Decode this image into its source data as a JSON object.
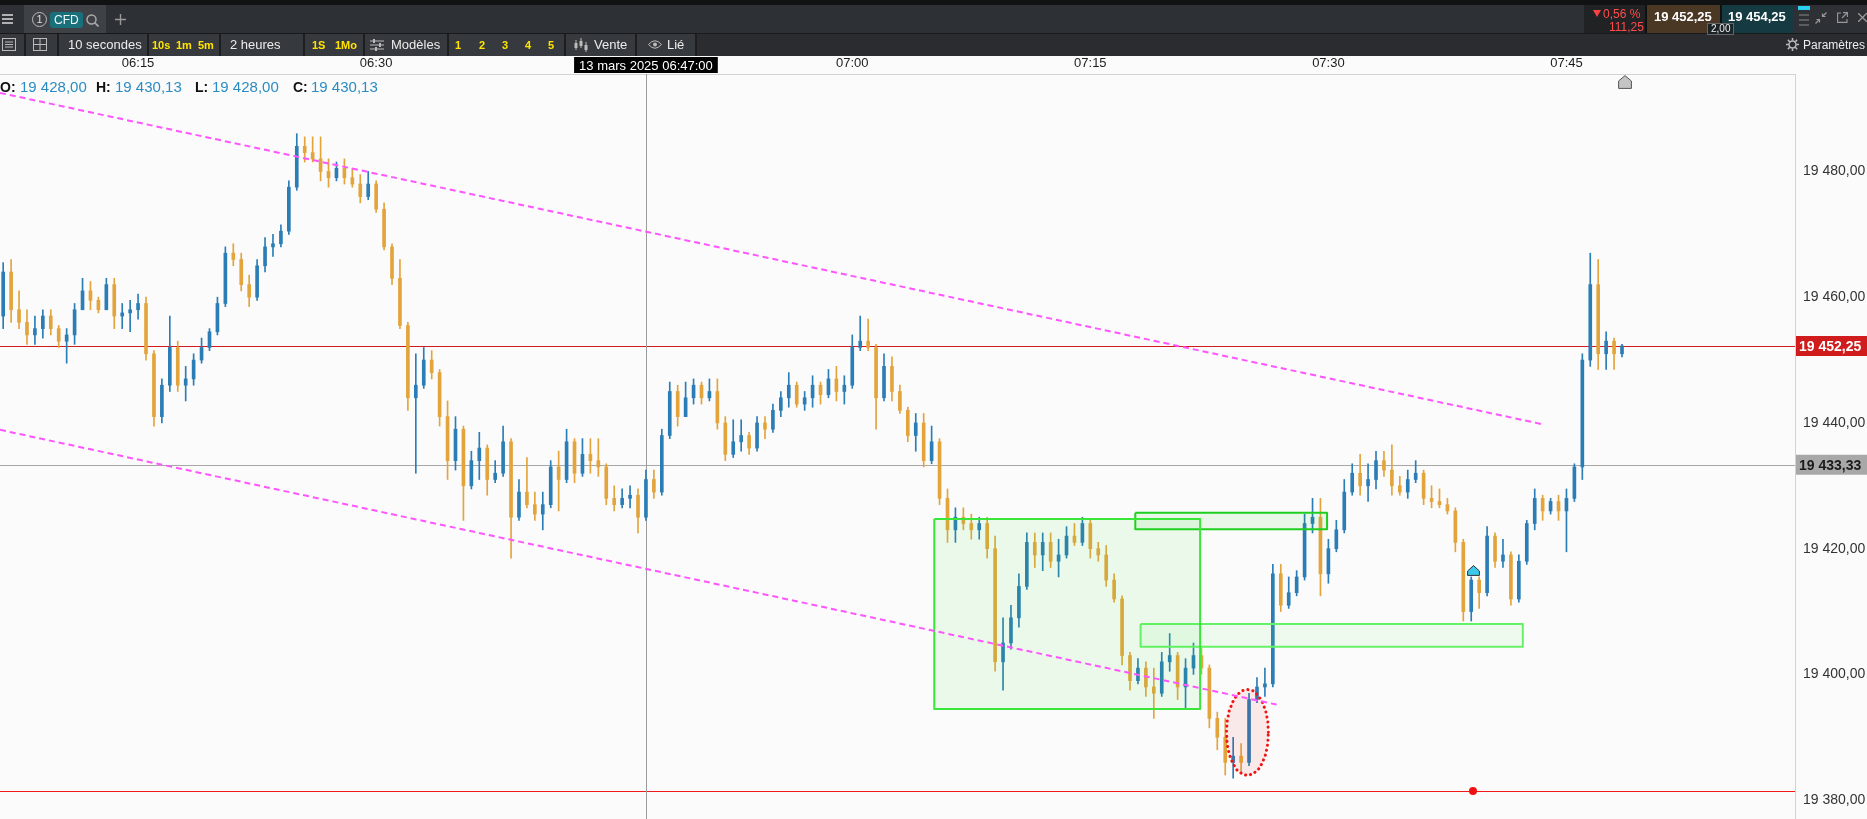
{
  "chart_data": {
    "type": "candlestick",
    "x": [
      "2025-03-13T06:06:30",
      "2025-03-13T06:07:00",
      "2025-03-13T06:07:30",
      "2025-03-13T06:08:00",
      "2025-03-13T06:08:30",
      "2025-03-13T06:09:00",
      "2025-03-13T06:09:30",
      "2025-03-13T06:10:00",
      "2025-03-13T06:10:30",
      "2025-03-13T06:11:00",
      "2025-03-13T06:11:30",
      "2025-03-13T06:12:00",
      "2025-03-13T06:12:30",
      "2025-03-13T06:13:00",
      "2025-03-13T06:13:30",
      "2025-03-13T06:14:00",
      "2025-03-13T06:14:30",
      "2025-03-13T06:15:00",
      "2025-03-13T06:15:30",
      "2025-03-13T06:16:00",
      "2025-03-13T06:16:30",
      "2025-03-13T06:17:00",
      "2025-03-13T06:17:30",
      "2025-03-13T06:18:00",
      "2025-03-13T06:18:30",
      "2025-03-13T06:19:00",
      "2025-03-13T06:19:30",
      "2025-03-13T06:20:00",
      "2025-03-13T06:20:30",
      "2025-03-13T06:21:00",
      "2025-03-13T06:21:30",
      "2025-03-13T06:22:00",
      "2025-03-13T06:22:30",
      "2025-03-13T06:23:00",
      "2025-03-13T06:23:30",
      "2025-03-13T06:24:00",
      "2025-03-13T06:24:30",
      "2025-03-13T06:25:00",
      "2025-03-13T06:25:30",
      "2025-03-13T06:26:00",
      "2025-03-13T06:26:30",
      "2025-03-13T06:27:00",
      "2025-03-13T06:27:30",
      "2025-03-13T06:28:00",
      "2025-03-13T06:28:30",
      "2025-03-13T06:29:00",
      "2025-03-13T06:29:30",
      "2025-03-13T06:30:00",
      "2025-03-13T06:30:30",
      "2025-03-13T06:31:00",
      "2025-03-13T06:31:30",
      "2025-03-13T06:32:00",
      "2025-03-13T06:32:30",
      "2025-03-13T06:33:00",
      "2025-03-13T06:33:30",
      "2025-03-13T06:34:00",
      "2025-03-13T06:34:30",
      "2025-03-13T06:35:00",
      "2025-03-13T06:35:30",
      "2025-03-13T06:36:00",
      "2025-03-13T06:36:30",
      "2025-03-13T06:37:00",
      "2025-03-13T06:37:30",
      "2025-03-13T06:38:00",
      "2025-03-13T06:38:30",
      "2025-03-13T06:39:00",
      "2025-03-13T06:39:30",
      "2025-03-13T06:40:00",
      "2025-03-13T06:40:30",
      "2025-03-13T06:41:00",
      "2025-03-13T06:41:30",
      "2025-03-13T06:42:00",
      "2025-03-13T06:42:30",
      "2025-03-13T06:43:00",
      "2025-03-13T06:43:30",
      "2025-03-13T06:44:00",
      "2025-03-13T06:44:30",
      "2025-03-13T06:45:00",
      "2025-03-13T06:45:30",
      "2025-03-13T06:46:00",
      "2025-03-13T06:46:30",
      "2025-03-13T06:47:00",
      "2025-03-13T06:47:30",
      "2025-03-13T06:48:00",
      "2025-03-13T06:48:30",
      "2025-03-13T06:49:00",
      "2025-03-13T06:49:30",
      "2025-03-13T06:50:00",
      "2025-03-13T06:50:30",
      "2025-03-13T06:51:00",
      "2025-03-13T06:51:30",
      "2025-03-13T06:52:00",
      "2025-03-13T06:52:30",
      "2025-03-13T06:53:00",
      "2025-03-13T06:53:30",
      "2025-03-13T06:54:00",
      "2025-03-13T06:54:30",
      "2025-03-13T06:55:00",
      "2025-03-13T06:55:30",
      "2025-03-13T06:56:00",
      "2025-03-13T06:56:30",
      "2025-03-13T06:57:00",
      "2025-03-13T06:57:30",
      "2025-03-13T06:58:00",
      "2025-03-13T06:58:30",
      "2025-03-13T06:59:00",
      "2025-03-13T06:59:30",
      "2025-03-13T07:00:00",
      "2025-03-13T07:00:30",
      "2025-03-13T07:01:00",
      "2025-03-13T07:01:30",
      "2025-03-13T07:02:00",
      "2025-03-13T07:02:30",
      "2025-03-13T07:03:00",
      "2025-03-13T07:03:30",
      "2025-03-13T07:04:00",
      "2025-03-13T07:04:30",
      "2025-03-13T07:05:00",
      "2025-03-13T07:05:30",
      "2025-03-13T07:06:00",
      "2025-03-13T07:06:30",
      "2025-03-13T07:07:00",
      "2025-03-13T07:07:30",
      "2025-03-13T07:08:00",
      "2025-03-13T07:08:30",
      "2025-03-13T07:09:00",
      "2025-03-13T07:09:30",
      "2025-03-13T07:10:00",
      "2025-03-13T07:10:30",
      "2025-03-13T07:11:00",
      "2025-03-13T07:11:30",
      "2025-03-13T07:12:00",
      "2025-03-13T07:12:30",
      "2025-03-13T07:13:00",
      "2025-03-13T07:13:30",
      "2025-03-13T07:14:00",
      "2025-03-13T07:14:30",
      "2025-03-13T07:15:00",
      "2025-03-13T07:15:30",
      "2025-03-13T07:16:00",
      "2025-03-13T07:16:30",
      "2025-03-13T07:17:00",
      "2025-03-13T07:17:30",
      "2025-03-13T07:18:00",
      "2025-03-13T07:18:30",
      "2025-03-13T07:19:00",
      "2025-03-13T07:19:30",
      "2025-03-13T07:20:00",
      "2025-03-13T07:20:30",
      "2025-03-13T07:21:00",
      "2025-03-13T07:21:30",
      "2025-03-13T07:22:00",
      "2025-03-13T07:22:30",
      "2025-03-13T07:23:00",
      "2025-03-13T07:23:30",
      "2025-03-13T07:24:00",
      "2025-03-13T07:24:30",
      "2025-03-13T07:25:00",
      "2025-03-13T07:25:30",
      "2025-03-13T07:26:00",
      "2025-03-13T07:26:30",
      "2025-03-13T07:27:00",
      "2025-03-13T07:27:30",
      "2025-03-13T07:28:00",
      "2025-03-13T07:28:30",
      "2025-03-13T07:29:00",
      "2025-03-13T07:29:30",
      "2025-03-13T07:30:00",
      "2025-03-13T07:30:30",
      "2025-03-13T07:31:00",
      "2025-03-13T07:31:30",
      "2025-03-13T07:32:00",
      "2025-03-13T07:32:30",
      "2025-03-13T07:33:00",
      "2025-03-13T07:33:30",
      "2025-03-13T07:34:00",
      "2025-03-13T07:34:30",
      "2025-03-13T07:35:00",
      "2025-03-13T07:35:30",
      "2025-03-13T07:36:00",
      "2025-03-13T07:36:30",
      "2025-03-13T07:37:00",
      "2025-03-13T07:37:30",
      "2025-03-13T07:38:00",
      "2025-03-13T07:38:30",
      "2025-03-13T07:39:00",
      "2025-03-13T07:39:30",
      "2025-03-13T07:40:00",
      "2025-03-13T07:40:30",
      "2025-03-13T07:41:00",
      "2025-03-13T07:41:30",
      "2025-03-13T07:42:00",
      "2025-03-13T07:42:30",
      "2025-03-13T07:43:00",
      "2025-03-13T07:43:30",
      "2025-03-13T07:44:00",
      "2025-03-13T07:44:30",
      "2025-03-13T07:45:00",
      "2025-03-13T07:45:30",
      "2025-03-13T07:46:00",
      "2025-03-13T07:46:30",
      "2025-03-13T07:47:00",
      "2025-03-13T07:47:30",
      "2025-03-13T07:48:00",
      "2025-03-13T07:48:30"
    ],
    "ohlc": [
      [
        19457,
        19465.5,
        19455,
        19464
      ],
      [
        19464,
        19466,
        19456,
        19458
      ],
      [
        19458,
        19461,
        19455,
        19456
      ],
      [
        19456,
        19458,
        19452.5,
        19454
      ],
      [
        19454,
        19457,
        19452.5,
        19455
      ],
      [
        19455,
        19458,
        19453.5,
        19457
      ],
      [
        19457,
        19458,
        19454,
        19455
      ],
      [
        19455,
        19455.5,
        19452,
        19453
      ],
      [
        19453,
        19455,
        19449.5,
        19454
      ],
      [
        19454,
        19459,
        19452.5,
        19458
      ],
      [
        19458,
        19463,
        19458,
        19461
      ],
      [
        19461,
        19462.5,
        19458,
        19459.5
      ],
      [
        19459.5,
        19460,
        19457.5,
        19458
      ],
      [
        19458,
        19463,
        19458,
        19462
      ],
      [
        19462,
        19463,
        19455,
        19457
      ],
      [
        19457,
        19459,
        19455,
        19457.5
      ],
      [
        19457.5,
        19459.5,
        19454.5,
        19458
      ],
      [
        19458,
        19460.5,
        19456.5,
        19459
      ],
      [
        19459,
        19460,
        19450,
        19451
      ],
      [
        19451,
        19451.5,
        19439.5,
        19441
      ],
      [
        19441,
        19447,
        19440,
        19446
      ],
      [
        19446,
        19457,
        19445,
        19452
      ],
      [
        19452,
        19453,
        19445,
        19446
      ],
      [
        19446,
        19449,
        19443.5,
        19447
      ],
      [
        19447,
        19451,
        19446,
        19450
      ],
      [
        19450,
        19453.5,
        19449.5,
        19452
      ],
      [
        19452,
        19455,
        19451.5,
        19454.5
      ],
      [
        19454.5,
        19460,
        19454,
        19459
      ],
      [
        19459,
        19468,
        19458.5,
        19467
      ],
      [
        19467,
        19468.5,
        19465,
        19466
      ],
      [
        19466,
        19467,
        19461,
        19462
      ],
      [
        19462,
        19463.5,
        19458.5,
        19460
      ],
      [
        19460,
        19466,
        19459.5,
        19465
      ],
      [
        19465,
        19469.5,
        19464,
        19468
      ],
      [
        19468,
        19470,
        19466.5,
        19468.5
      ],
      [
        19468.5,
        19471.5,
        19468,
        19470.5
      ],
      [
        19470.5,
        19478.5,
        19470,
        19477.5
      ],
      [
        19477.5,
        19486,
        19477,
        19484
      ],
      [
        19484,
        19485.5,
        19481.5,
        19483
      ],
      [
        19483,
        19485.5,
        19481.5,
        19482
      ],
      [
        19482,
        19485.5,
        19478.5,
        19480
      ],
      [
        19480,
        19482,
        19477.5,
        19479
      ],
      [
        19479,
        19481.5,
        19478.5,
        19480.5
      ],
      [
        19480.5,
        19482,
        19478,
        19479
      ],
      [
        19479,
        19480.5,
        19477.5,
        19478
      ],
      [
        19478,
        19479.5,
        19475,
        19476
      ],
      [
        19476,
        19480,
        19475.5,
        19478
      ],
      [
        19478,
        19478.5,
        19473.5,
        19474
      ],
      [
        19474,
        19475,
        19467.5,
        19468
      ],
      [
        19468,
        19468.5,
        19462,
        19463
      ],
      [
        19463,
        19466,
        19455,
        19455.5
      ],
      [
        19455.5,
        19456,
        19442,
        19444
      ],
      [
        19444,
        19451,
        19432,
        19446
      ],
      [
        19446,
        19452,
        19445.5,
        19450
      ],
      [
        19450,
        19451.5,
        19447,
        19448
      ],
      [
        19448,
        19448.5,
        19439.5,
        19441
      ],
      [
        19441,
        19443.5,
        19431,
        19434
      ],
      [
        19434,
        19441,
        19432.5,
        19439
      ],
      [
        19439,
        19439.5,
        19424.5,
        19430
      ],
      [
        19430,
        19435.5,
        19429.5,
        19434
      ],
      [
        19434,
        19438.5,
        19431,
        19436
      ],
      [
        19436,
        19436.5,
        19428.5,
        19431
      ],
      [
        19431,
        19434,
        19430.5,
        19432
      ],
      [
        19432,
        19439.5,
        19431.5,
        19437
      ],
      [
        19437,
        19437.5,
        19418.5,
        19425
      ],
      [
        19425,
        19431,
        19424.5,
        19429
      ],
      [
        19429,
        19434.5,
        19426.5,
        19427
      ],
      [
        19427,
        19429,
        19424.5,
        19425.5
      ],
      [
        19425.5,
        19429,
        19423,
        19427
      ],
      [
        19427,
        19434,
        19426.5,
        19433
      ],
      [
        19433,
        19435.5,
        19426,
        19431
      ],
      [
        19431,
        19439,
        19430.5,
        19437
      ],
      [
        19437,
        19437.5,
        19430.5,
        19432
      ],
      [
        19432,
        19437.5,
        19431.5,
        19435
      ],
      [
        19435,
        19437.5,
        19432,
        19434
      ],
      [
        19434,
        19437.5,
        19431.5,
        19433
      ],
      [
        19433,
        19433.5,
        19427,
        19428
      ],
      [
        19428,
        19430,
        19426,
        19427
      ],
      [
        19427,
        19429.5,
        19426.5,
        19428
      ],
      [
        19428,
        19430,
        19426.5,
        19428.5
      ],
      [
        19428.5,
        19429.5,
        19422.5,
        19425
      ],
      [
        19425,
        19432.5,
        19424.5,
        19431
      ],
      [
        19431,
        19432.5,
        19428,
        19429
      ],
      [
        19429,
        19439,
        19428.5,
        19438
      ],
      [
        19438,
        19446.5,
        19437.5,
        19445
      ],
      [
        19445,
        19446,
        19439.5,
        19441
      ],
      [
        19441,
        19446.5,
        19441,
        19444
      ],
      [
        19444,
        19447,
        19443,
        19446
      ],
      [
        19446,
        19446.5,
        19443,
        19444
      ],
      [
        19444,
        19447,
        19443.5,
        19445
      ],
      [
        19445,
        19447,
        19439,
        19440
      ],
      [
        19440,
        19441,
        19434,
        19435
      ],
      [
        19435,
        19440.5,
        19434.5,
        19437
      ],
      [
        19437,
        19440.5,
        19435.5,
        19438
      ],
      [
        19438,
        19438.5,
        19435,
        19436
      ],
      [
        19436,
        19441,
        19435.5,
        19440
      ],
      [
        19440,
        19441,
        19437.5,
        19439
      ],
      [
        19439,
        19443,
        19438.5,
        19442
      ],
      [
        19442,
        19445,
        19441,
        19444
      ],
      [
        19444,
        19448,
        19442.5,
        19446
      ],
      [
        19446,
        19446.5,
        19442.5,
        19443
      ],
      [
        19443,
        19445,
        19442,
        19444
      ],
      [
        19444,
        19447.5,
        19442.5,
        19446
      ],
      [
        19446,
        19446.5,
        19443,
        19444.5
      ],
      [
        19444.5,
        19448.5,
        19444,
        19447
      ],
      [
        19447,
        19449,
        19443.5,
        19445
      ],
      [
        19445,
        19447.5,
        19443,
        19446
      ],
      [
        19446,
        19454,
        19445.5,
        19452
      ],
      [
        19452,
        19457,
        19451.5,
        19453
      ],
      [
        19453,
        19456.5,
        19451.5,
        19452
      ],
      [
        19452,
        19452.5,
        19439,
        19444
      ],
      [
        19444,
        19451,
        19443.5,
        19449
      ],
      [
        19449,
        19450.5,
        19443.5,
        19445
      ],
      [
        19445,
        19446,
        19441.5,
        19442
      ],
      [
        19442,
        19442.5,
        19437,
        19438
      ],
      [
        19438,
        19441.5,
        19435.5,
        19440
      ],
      [
        19440,
        19441.5,
        19433,
        19434
      ],
      [
        19434,
        19439.5,
        19433.5,
        19437
      ],
      [
        19437,
        19437.5,
        19427,
        19428
      ],
      [
        19428,
        19429.5,
        19421,
        19423
      ],
      [
        19423,
        19426.5,
        19421,
        19425
      ],
      [
        19425,
        19426.5,
        19423,
        19424
      ],
      [
        19424,
        19425.5,
        19421.5,
        19423
      ],
      [
        19423,
        19425,
        19421.5,
        19424
      ],
      [
        19424,
        19425,
        19418.5,
        19420
      ],
      [
        19420,
        19422,
        19400.5,
        19402
      ],
      [
        19402,
        19409,
        19397.5,
        19405
      ],
      [
        19405,
        19411,
        19404,
        19409
      ],
      [
        19409,
        19416,
        19407.5,
        19414
      ],
      [
        19414,
        19422.5,
        19413.5,
        19421
      ],
      [
        19421,
        19422.5,
        19417,
        19419
      ],
      [
        19419,
        19422.5,
        19416.5,
        19421
      ],
      [
        19421,
        19422.5,
        19417,
        19418
      ],
      [
        19418,
        19421.5,
        19415.5,
        19419
      ],
      [
        19419,
        19423.5,
        19418.5,
        19422
      ],
      [
        19422,
        19424,
        19420.5,
        19421
      ],
      [
        19421,
        19425,
        19420.5,
        19424
      ],
      [
        19424,
        19424.5,
        19418.5,
        19420
      ],
      [
        19420,
        19421,
        19418,
        19419
      ],
      [
        19419,
        19420.5,
        19414,
        19415
      ],
      [
        19415,
        19416,
        19411.5,
        19412
      ],
      [
        19412,
        19412.5,
        19401.5,
        19403
      ],
      [
        19403,
        19403.5,
        19397.5,
        19399
      ],
      [
        19399,
        19402.5,
        19398.5,
        19401
      ],
      [
        19401,
        19402,
        19396.5,
        19398
      ],
      [
        19398,
        19401,
        19393,
        19397
      ],
      [
        19397,
        19403.5,
        19396.5,
        19402
      ],
      [
        19402,
        19406.5,
        19400.5,
        19403
      ],
      [
        19403,
        19403.5,
        19396,
        19398
      ],
      [
        19398,
        19402.5,
        19394.5,
        19401
      ],
      [
        19401,
        19405,
        19400,
        19403
      ],
      [
        19403,
        19404.5,
        19400,
        19401
      ],
      [
        19401,
        19401.5,
        19391.5,
        19393
      ],
      [
        19393,
        19394,
        19388,
        19390
      ],
      [
        19390,
        19393,
        19384,
        19386
      ],
      [
        19386,
        19390,
        19383.5,
        19387
      ],
      [
        19387,
        19389,
        19384.5,
        19386
      ],
      [
        19386,
        19397,
        19385.5,
        19396
      ],
      [
        19396,
        19399.5,
        19395.5,
        19398
      ],
      [
        19398,
        19401,
        19396.5,
        19398.5
      ],
      [
        19398.5,
        19417.5,
        19398,
        19416
      ],
      [
        19416,
        19417.5,
        19410,
        19411
      ],
      [
        19411,
        19415.5,
        19410.5,
        19413
      ],
      [
        19413,
        19416.5,
        19412.5,
        19415.5
      ],
      [
        19415.5,
        19425.5,
        19415,
        19424
      ],
      [
        19424,
        19428,
        19422.5,
        19425
      ],
      [
        19425,
        19428,
        19412.5,
        19416
      ],
      [
        19416,
        19421.5,
        19414.5,
        19420
      ],
      [
        19420,
        19424.5,
        19419.5,
        19423
      ],
      [
        19423,
        19431,
        19422.5,
        19429
      ],
      [
        19429,
        19433.5,
        19428.5,
        19432
      ],
      [
        19432,
        19435,
        19428.5,
        19430
      ],
      [
        19430,
        19433.5,
        19427.5,
        19431
      ],
      [
        19431,
        19435.5,
        19429.5,
        19434
      ],
      [
        19434,
        19435.5,
        19431.5,
        19432.5
      ],
      [
        19432.5,
        19436.5,
        19428.5,
        19430
      ],
      [
        19430,
        19431.5,
        19428.5,
        19429
      ],
      [
        19429,
        19432.5,
        19428,
        19431
      ],
      [
        19431,
        19434,
        19430.5,
        19432
      ],
      [
        19432,
        19432.5,
        19427,
        19428
      ],
      [
        19428,
        19430,
        19426.5,
        19427.5
      ],
      [
        19427.5,
        19429.5,
        19426.5,
        19427
      ],
      [
        19427,
        19428,
        19425.5,
        19426
      ],
      [
        19426,
        19426.5,
        19419.5,
        19421
      ],
      [
        19421,
        19421.5,
        19408.5,
        19410
      ],
      [
        19410,
        19415.5,
        19408.5,
        19415
      ],
      [
        19415,
        19415.5,
        19410.5,
        19413
      ],
      [
        19413,
        19423.5,
        19412.5,
        19422
      ],
      [
        19422,
        19422.5,
        19417,
        19418
      ],
      [
        19418,
        19421.5,
        19417,
        19419
      ],
      [
        19419,
        19419.5,
        19411,
        19412
      ],
      [
        19412,
        19419,
        19411.5,
        19418
      ],
      [
        19418,
        19424.5,
        19417.5,
        19424
      ],
      [
        19424,
        19429.5,
        19423,
        19428
      ],
      [
        19428,
        19428.5,
        19424.5,
        19426
      ],
      [
        19426,
        19428,
        19425.5,
        19427.5
      ],
      [
        19427.5,
        19428.5,
        19424.5,
        19426
      ],
      [
        19426,
        19429.5,
        19419.5,
        19428
      ],
      [
        19428,
        19433.5,
        19427.5,
        19433
      ],
      [
        19433,
        19451,
        19431,
        19450
      ],
      [
        19450,
        19467,
        19449,
        19462
      ],
      [
        19462,
        19466,
        19448.5,
        19451
      ],
      [
        19451,
        19454.5,
        19448.5,
        19453
      ],
      [
        19453,
        19453.5,
        19448.5,
        19451
      ],
      [
        19451,
        19452.5,
        19450.5,
        19452.25
      ]
    ],
    "colors": [
      "#2b7db6",
      "#e3a43c",
      "#e3a43c",
      "#e3a43c",
      "#2b7db6",
      "#2b7db6",
      "#e3a43c",
      "#e3a43c",
      "#2b7db6",
      "#2b7db6",
      "#2b7db6",
      "#e3a43c",
      "#e3a43c",
      "#2b7db6",
      "#e3a43c",
      "#2b7db6",
      "#2b7db6",
      "#2b7db6",
      "#e3a43c",
      "#e3a43c",
      "#2b7db6",
      "#2b7db6",
      "#e3a43c",
      "#2b7db6",
      "#2b7db6",
      "#2b7db6",
      "#2b7db6",
      "#2b7db6",
      "#2b7db6",
      "#e3a43c",
      "#e3a43c",
      "#e3a43c",
      "#2b7db6",
      "#2b7db6",
      "#2b7db6",
      "#2b7db6",
      "#2b7db6",
      "#2b7db6",
      "#e3a43c",
      "#e3a43c",
      "#e3a43c",
      "#e3a43c",
      "#2b7db6",
      "#e3a43c",
      "#e3a43c",
      "#e3a43c",
      "#2b7db6",
      "#e3a43c",
      "#e3a43c",
      "#e3a43c",
      "#e3a43c",
      "#e3a43c",
      "#2b7db6",
      "#2b7db6",
      "#e3a43c",
      "#e3a43c",
      "#e3a43c",
      "#2b7db6",
      "#e3a43c",
      "#2b7db6",
      "#2b7db6",
      "#e3a43c",
      "#2b7db6",
      "#2b7db6",
      "#e3a43c",
      "#2b7db6",
      "#e3a43c",
      "#e3a43c",
      "#2b7db6",
      "#2b7db6",
      "#e3a43c",
      "#2b7db6",
      "#e3a43c",
      "#2b7db6",
      "#e3a43c",
      "#e3a43c",
      "#e3a43c",
      "#e3a43c",
      "#2b7db6",
      "#2b7db6",
      "#e3a43c",
      "#2b7db6",
      "#e3a43c",
      "#2b7db6",
      "#2b7db6",
      "#e3a43c",
      "#2b7db6",
      "#2b7db6",
      "#e3a43c",
      "#2b7db6",
      "#e3a43c",
      "#e3a43c",
      "#2b7db6",
      "#2b7db6",
      "#e3a43c",
      "#2b7db6",
      "#e3a43c",
      "#2b7db6",
      "#2b7db6",
      "#2b7db6",
      "#e3a43c",
      "#2b7db6",
      "#2b7db6",
      "#e3a43c",
      "#2b7db6",
      "#e3a43c",
      "#2b7db6",
      "#2b7db6",
      "#2b7db6",
      "#e3a43c",
      "#e3a43c",
      "#2b7db6",
      "#e3a43c",
      "#e3a43c",
      "#e3a43c",
      "#2b7db6",
      "#e3a43c",
      "#2b7db6",
      "#e3a43c",
      "#e3a43c",
      "#2b7db6",
      "#e3a43c",
      "#e3a43c",
      "#2b7db6",
      "#e3a43c",
      "#e3a43c",
      "#2b7db6",
      "#2b7db6",
      "#2b7db6",
      "#2b7db6",
      "#e3a43c",
      "#2b7db6",
      "#e3a43c",
      "#2b7db6",
      "#2b7db6",
      "#e3a43c",
      "#2b7db6",
      "#e3a43c",
      "#e3a43c",
      "#e3a43c",
      "#e3a43c",
      "#e3a43c",
      "#e3a43c",
      "#2b7db6",
      "#e3a43c",
      "#e3a43c",
      "#2b7db6",
      "#2b7db6",
      "#e3a43c",
      "#2b7db6",
      "#2b7db6",
      "#e3a43c",
      "#e3a43c",
      "#e3a43c",
      "#e3a43c",
      "#2b7db6",
      "#e3a43c",
      "#2b7db6",
      "#2b7db6",
      "#2b7db6",
      "#2b7db6",
      "#e3a43c",
      "#2b7db6",
      "#2b7db6",
      "#2b7db6",
      "#2b7db6",
      "#e3a43c",
      "#2b7db6",
      "#2b7db6",
      "#2b7db6",
      "#2b7db6",
      "#e3a43c",
      "#2b7db6",
      "#2b7db6",
      "#e3a43c",
      "#e3a43c",
      "#e3a43c",
      "#2b7db6",
      "#2b7db6",
      "#e3a43c",
      "#e3a43c",
      "#e3a43c",
      "#e3a43c",
      "#e3a43c",
      "#e3a43c",
      "#2b7db6",
      "#e3a43c",
      "#2b7db6",
      "#e3a43c",
      "#2b7db6",
      "#e3a43c",
      "#2b7db6",
      "#2b7db6",
      "#2b7db6",
      "#e3a43c",
      "#2b7db6",
      "#e3a43c",
      "#2b7db6",
      "#2b7db6",
      "#2b7db6",
      "#2b7db6",
      "#e3a43c",
      "#2b7db6",
      "#e3a43c",
      "#2b7db6"
    ],
    "series": [
      {
        "type": "line",
        "color": "#ff55ff",
        "line_style": "dashed",
        "x": [
          "2025-03-13T06:06:18",
          "2025-03-13T07:43:28"
        ],
        "values": [
          19492.5,
          19439.8
        ]
      },
      {
        "type": "line",
        "color": "#ff55ff",
        "line_style": "dashed",
        "x": [
          "2025-03-13T06:06:18",
          "2025-03-13T07:26:44"
        ],
        "values": [
          19438.9,
          19395.2
        ]
      },
      {
        "type": "area",
        "color": "#39e639",
        "line_style": "solid",
        "x": [
          "2025-03-13T07:05:10",
          "2025-03-13T07:21:55",
          "2025-03-13T07:21:55",
          "2025-03-13T07:05:10",
          "2025-03-13T07:05:10"
        ],
        "values": [
          19424.7,
          19424.7,
          19394.5,
          19394.5,
          19424.7
        ]
      },
      {
        "type": "area",
        "color": "#1fcf1f",
        "line_style": "solid",
        "x": [
          "2025-03-13T07:17:50",
          "2025-03-13T07:29:55",
          "2025-03-13T07:29:55",
          "2025-03-13T07:17:50",
          "2025-03-13T07:17:50"
        ],
        "values": [
          19425.7,
          19425.7,
          19423.1,
          19423.1,
          19425.7
        ]
      },
      {
        "type": "area",
        "color": "#66f266",
        "line_style": "solid",
        "x": [
          "2025-03-13T07:18:10",
          "2025-03-13T07:42:15",
          "2025-03-13T07:42:15",
          "2025-03-13T07:18:10",
          "2025-03-13T07:18:10"
        ],
        "values": [
          19408,
          19408,
          19404.4,
          19404.4,
          19408
        ]
      },
      {
        "type": "area",
        "color": "#f01414",
        "line_style": "dotted",
        "x": [
          "2025-03-13T07:26:13",
          "2025-03-13T07:26:11",
          "2025-03-13T07:26:03",
          "2025-03-13T07:25:50",
          "2025-03-13T07:25:34",
          "2025-03-13T07:25:15",
          "2025-03-13T07:24:54",
          "2025-03-13T07:24:33",
          "2025-03-13T07:24:14",
          "2025-03-13T07:23:58",
          "2025-03-13T07:23:45",
          "2025-03-13T07:23:37",
          "2025-03-13T07:23:35",
          "2025-03-13T07:23:37",
          "2025-03-13T07:23:45",
          "2025-03-13T07:23:58",
          "2025-03-13T07:24:14",
          "2025-03-13T07:24:33",
          "2025-03-13T07:24:54",
          "2025-03-13T07:25:15",
          "2025-03-13T07:25:34",
          "2025-03-13T07:25:50",
          "2025-03-13T07:26:03",
          "2025-03-13T07:26:11",
          "2025-03-13T07:26:13"
        ],
        "values": [
          19390.8,
          19392.5,
          19394.2,
          19395.6,
          19396.7,
          19397.4,
          19397.6,
          19397.4,
          19396.7,
          19395.6,
          19394.2,
          19392.5,
          19390.8,
          19389,
          19387.3,
          19385.9,
          19384.8,
          19384.2,
          19383.9,
          19384.2,
          19384.8,
          19385.9,
          19387.3,
          19389,
          19390.8
        ]
      }
    ],
    "xlim": [
      "2025-03-13T06:06:18",
      "2025-03-13T07:59:24"
    ],
    "xticks": [
      {
        "value": "2025-03-13T06:15",
        "label": "06:15"
      },
      {
        "value": "2025-03-13T06:30",
        "label": "06:30"
      },
      {
        "value": "2025-03-13T07:00",
        "label": "07:00"
      },
      {
        "value": "2025-03-13T07:15",
        "label": "07:15"
      },
      {
        "value": "2025-03-13T07:30",
        "label": "07:30"
      },
      {
        "value": "2025-03-13T07:45",
        "label": "07:45"
      }
    ],
    "ylim": [
      19377,
      19495.5
    ],
    "yticks": [
      {
        "value": 19380,
        "label": "19 380,00"
      },
      {
        "value": 19400,
        "label": "19 400,00"
      },
      {
        "value": 19420,
        "label": "19 420,00"
      },
      {
        "value": 19440,
        "label": "19 440,00"
      },
      {
        "value": 19460,
        "label": "19 460,00"
      },
      {
        "value": 19480,
        "label": "19 480,00"
      }
    ],
    "ref_lines": [
      {
        "axis": "y",
        "value": 19452.25,
        "label": "19 452,25",
        "color": "#d01c1c"
      },
      {
        "axis": "y",
        "value": 19433.33,
        "label": "19 433,33",
        "color": "#a8a8a8"
      },
      {
        "axis": "y",
        "value": 19381.5,
        "color": "#f01818"
      },
      {
        "axis": "x",
        "value": "2025-03-13T06:47:00",
        "label": "13 mars 2025 06:47:00",
        "color": "#9c9c9c"
      }
    ],
    "annotations": [
      "1",
      "CFD",
      "0,56 %",
      "111,25",
      "19 452,25",
      "19 454,25",
      "2,00",
      "10 secondes",
      "10s",
      "1m",
      "5m",
      "2 heures",
      "1S",
      "1Mo",
      "Modèles",
      "1",
      "2",
      "3",
      "4",
      "5",
      "Vente",
      "Lié",
      "Paramètres",
      "O:",
      "19 428,00",
      "H:",
      "19 430,13",
      "L:",
      "19 428,00",
      "C:",
      "19 430,13"
    ],
    "grid": false,
    "legend": false,
    "marker": "none"
  }
}
